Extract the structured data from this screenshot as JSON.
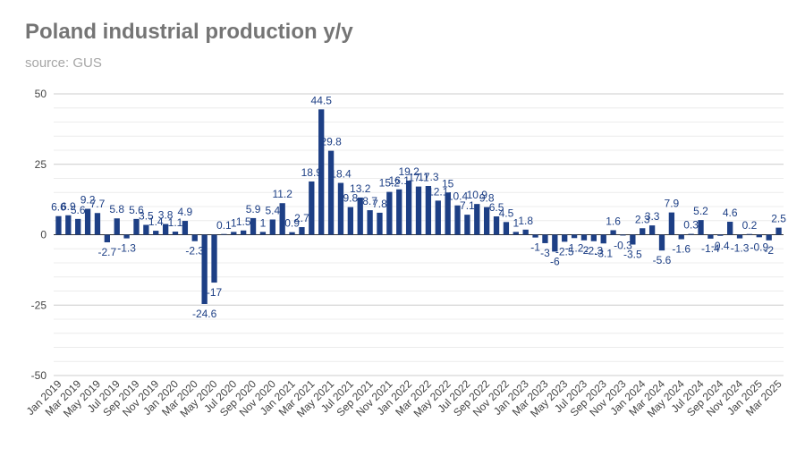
{
  "header": {
    "title": "Poland industrial production y/y",
    "subtitle": "source: GUS"
  },
  "chart_data": {
    "type": "bar",
    "title": "Poland industrial production y/y",
    "subtitle": "source: GUS",
    "xlabel": "",
    "ylabel": "",
    "ylim": [
      -50,
      50
    ],
    "yticks": [
      -50,
      -25,
      0,
      25,
      50
    ],
    "grid": true,
    "bar_color": "#1d3f85",
    "categories": [
      "Jan 2019",
      "Feb 2019",
      "Mar 2019",
      "Apr 2019",
      "May 2019",
      "Jun 2019",
      "Jul 2019",
      "Aug 2019",
      "Sep 2019",
      "Oct 2019",
      "Nov 2019",
      "Dec 2019",
      "Jan 2020",
      "Feb 2020",
      "Mar 2020",
      "Apr 2020",
      "May 2020",
      "Jun 2020",
      "Jul 2020",
      "Aug 2020",
      "Sep 2020",
      "Oct 2020",
      "Nov 2020",
      "Dec 2020",
      "Jan 2021",
      "Feb 2021",
      "Mar 2021",
      "Apr 2021",
      "May 2021",
      "Jun 2021",
      "Jul 2021",
      "Aug 2021",
      "Sep 2021",
      "Oct 2021",
      "Nov 2021",
      "Dec 2021",
      "Jan 2022",
      "Feb 2022",
      "Mar 2022",
      "Apr 2022",
      "May 2022",
      "Jun 2022",
      "Jul 2022",
      "Aug 2022",
      "Sep 2022",
      "Oct 2022",
      "Nov 2022",
      "Dec 2022",
      "Jan 2023",
      "Feb 2023",
      "Mar 2023",
      "Apr 2023",
      "May 2023",
      "Jun 2023",
      "Jul 2023",
      "Aug 2023",
      "Sep 2023",
      "Oct 2023",
      "Nov 2023",
      "Dec 2023",
      "Jan 2024",
      "Feb 2024",
      "Mar 2024",
      "Apr 2024",
      "May 2024",
      "Jun 2024",
      "Jul 2024",
      "Aug 2024",
      "Sep 2024",
      "Oct 2024",
      "Nov 2024",
      "Dec 2024",
      "Jan 2025",
      "Feb 2025",
      "Mar 2025"
    ],
    "x_tick_labels": [
      "Jan 2019",
      "Mar 2019",
      "May 2019",
      "Jul 2019",
      "Sep 2019",
      "Nov 2019",
      "Jan 2020",
      "Mar 2020",
      "May 2020",
      "Jul 2020",
      "Sep 2020",
      "Nov 2020",
      "Jan 2021",
      "Mar 2021",
      "May 2021",
      "Jul 2021",
      "Sep 2021",
      "Nov 2021",
      "Jan 2022",
      "Mar 2022",
      "May 2022",
      "Jul 2022",
      "Sep 2022",
      "Nov 2022",
      "Jan 2023",
      "Mar 2023",
      "May 2023",
      "Jul 2023",
      "Sep 2023",
      "Nov 2023",
      "Jan 2024",
      "Mar 2024",
      "May 2024",
      "Jul 2024",
      "Sep 2024",
      "Nov 2024",
      "Jan 2025",
      "Mar 2025"
    ],
    "values": [
      6.6,
      6.9,
      5.6,
      9.2,
      7.7,
      -2.7,
      5.8,
      -1.3,
      5.6,
      3.5,
      1.4,
      3.8,
      1.1,
      4.9,
      -2.3,
      -24.6,
      -17,
      0.1,
      1,
      1.5,
      5.9,
      1,
      5.4,
      11.2,
      0.9,
      2.7,
      18.9,
      44.5,
      29.8,
      18.4,
      9.8,
      13.2,
      8.7,
      7.8,
      15.2,
      16.1,
      19.2,
      17.1,
      17.3,
      12.1,
      15,
      10.4,
      7.1,
      10.9,
      9.8,
      6.5,
      4.5,
      1,
      1.8,
      -1,
      -3,
      -6,
      -2.5,
      -1.2,
      -2,
      -2.3,
      -3.1,
      1.6,
      -0.3,
      -3.5,
      2.3,
      3.3,
      -5.6,
      7.9,
      -1.6,
      0.3,
      5.2,
      -1.4,
      -0.4,
      4.6,
      -1.3,
      0.2,
      -0.9,
      -2,
      2.5
    ]
  }
}
